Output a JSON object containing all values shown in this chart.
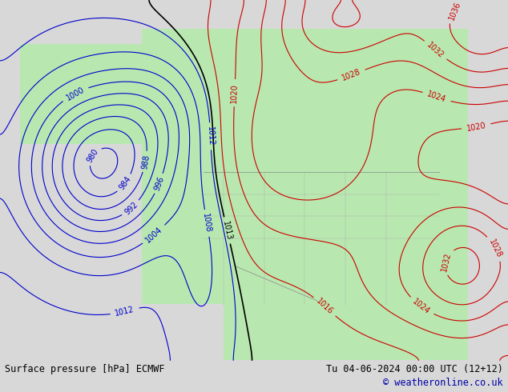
{
  "title_left": "Surface pressure [hPa] ECMWF",
  "title_right": "Tu 04-06-2024 00:00 UTC (12+12)",
  "copyright": "© weatheronline.co.uk",
  "bg_color": "#d8d8d8",
  "land_color": "#b8e8b0",
  "sea_color": "#d8d8d8",
  "contour_color_blue": "#0000cc",
  "contour_color_red": "#cc0000",
  "contour_color_black": "#000000",
  "label_fontsize": 7,
  "footer_fontsize": 8.5,
  "copyright_fontsize": 8.5
}
